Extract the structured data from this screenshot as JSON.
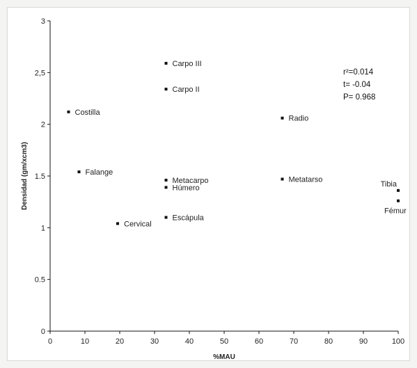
{
  "colors": {
    "axis": "#111111",
    "point": "#111111",
    "text": "#222222"
  },
  "stats": [
    "r²=0.014",
    "t= -0.04",
    "P= 0.968"
  ],
  "chart_data": {
    "type": "scatter",
    "title": "",
    "xlabel": "%MAU",
    "ylabel": "Densidad (gm/xcm3)",
    "xlim": [
      0,
      100
    ],
    "ylim": [
      0,
      3
    ],
    "xticks": [
      0,
      10,
      20,
      30,
      40,
      50,
      60,
      70,
      80,
      90,
      100
    ],
    "yticks": [
      0,
      0.5,
      1,
      1.5,
      2,
      2.5,
      3
    ],
    "ytick_labels": [
      "0",
      "0.5",
      "1",
      "1.5",
      "2",
      "2,5",
      "3"
    ],
    "grid": false,
    "legend": "none",
    "points": [
      {
        "label": "Carpo III",
        "x": 33.3,
        "y": 2.59,
        "label_side": "right"
      },
      {
        "label": "Carpo II",
        "x": 33.3,
        "y": 2.34,
        "label_side": "right"
      },
      {
        "label": "Costilla",
        "x": 5.3,
        "y": 2.12,
        "label_side": "right"
      },
      {
        "label": "Radio",
        "x": 66.7,
        "y": 2.06,
        "label_side": "right"
      },
      {
        "label": "Falange",
        "x": 8.3,
        "y": 1.54,
        "label_side": "right"
      },
      {
        "label": "Metacarpo",
        "x": 33.3,
        "y": 1.46,
        "label_side": "right"
      },
      {
        "label": "Húmero",
        "x": 33.3,
        "y": 1.39,
        "label_side": "right"
      },
      {
        "label": "Metatarso",
        "x": 66.7,
        "y": 1.47,
        "label_side": "right"
      },
      {
        "label": "Tibia",
        "x": 100,
        "y": 1.36,
        "label_side": "left-above"
      },
      {
        "label": "Fémur",
        "x": 100,
        "y": 1.26,
        "label_side": "below"
      },
      {
        "label": "Escápula",
        "x": 33.3,
        "y": 1.1,
        "label_side": "right"
      },
      {
        "label": "Cervical",
        "x": 19.4,
        "y": 1.04,
        "label_side": "right"
      }
    ]
  }
}
